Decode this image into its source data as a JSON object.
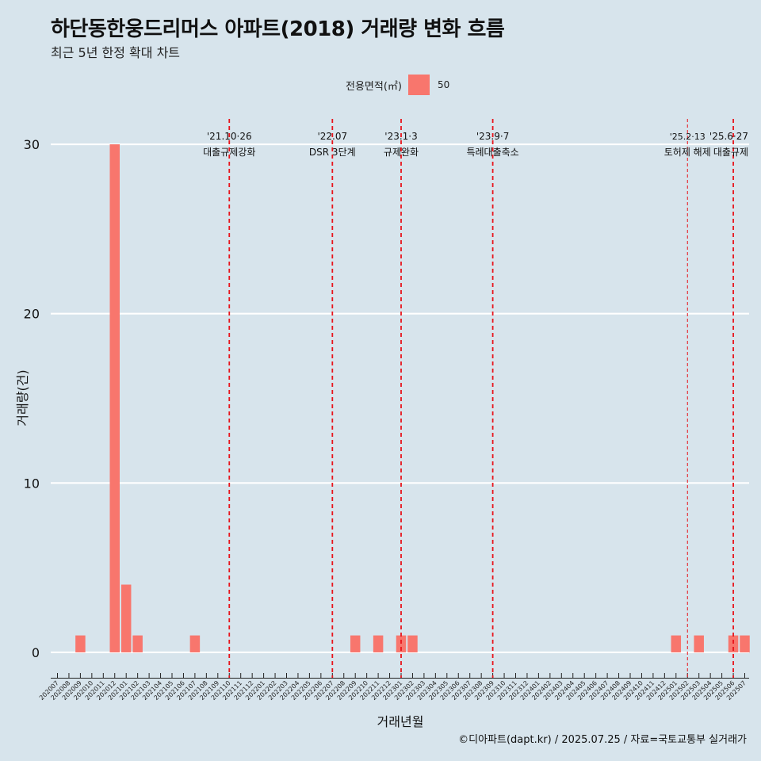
{
  "title": "하단동한웅드리머스 아파트(2018) 거래량 변화 흐름",
  "subtitle": "최근 5년 한정 확대 차트",
  "caption": "©디아파트(dapt.kr) / 2025.07.25 / 자료=국토교통부 실거래가",
  "legend": {
    "title": "전용면적(㎡)",
    "label": "50",
    "color": "#f8766d"
  },
  "chart_data": {
    "type": "bar",
    "xlabel": "거래년월",
    "ylabel": "거래량(건)",
    "ylim": [
      -1.5,
      31.5
    ],
    "yticks": [
      0,
      10,
      20,
      30
    ],
    "grid": true,
    "legend_position": "top",
    "bar_color": "#f8766d",
    "categories": [
      "202007",
      "202008",
      "202009",
      "202010",
      "202011",
      "202012",
      "202101",
      "202102",
      "202103",
      "202104",
      "202105",
      "202106",
      "202107",
      "202108",
      "202109",
      "202110",
      "202111",
      "202112",
      "202201",
      "202202",
      "202203",
      "202204",
      "202205",
      "202206",
      "202207",
      "202208",
      "202209",
      "202210",
      "202211",
      "202212",
      "202301",
      "202302",
      "202303",
      "202304",
      "202305",
      "202306",
      "202307",
      "202308",
      "202309",
      "202310",
      "202311",
      "202312",
      "202401",
      "202402",
      "202403",
      "202404",
      "202405",
      "202406",
      "202407",
      "202408",
      "202409",
      "202410",
      "202411",
      "202412",
      "202501",
      "202502",
      "202503",
      "202504",
      "202505",
      "202506",
      "202507"
    ],
    "series": [
      {
        "values": [
          0,
          0,
          1,
          0,
          0,
          30,
          4,
          1,
          0,
          0,
          0,
          0,
          1,
          0,
          0,
          0,
          0,
          0,
          0,
          0,
          0,
          0,
          0,
          0,
          0,
          0,
          1,
          0,
          1,
          0,
          1,
          1,
          0,
          0,
          0,
          0,
          0,
          0,
          0,
          0,
          0,
          0,
          0,
          0,
          0,
          0,
          0,
          0,
          0,
          0,
          0,
          0,
          0,
          0,
          1,
          0,
          1,
          0,
          0,
          1,
          1
        ]
      }
    ],
    "events": [
      {
        "category": "202110",
        "date": "'21.10·26",
        "label": "대출규제강화",
        "style": "dashed"
      },
      {
        "category": "202207",
        "date": "'22.07",
        "label": "DSR 3단계",
        "style": "dashed"
      },
      {
        "category": "202301",
        "date": "'23.1·3",
        "label": "규제완화",
        "style": "dashed"
      },
      {
        "category": "202309",
        "date": "'23.9·7",
        "label": "특례대출축소",
        "style": "dashed"
      },
      {
        "category": "202502",
        "date": "'25.2·13",
        "label": "토허제 해제",
        "style": "thin"
      },
      {
        "category": "202506",
        "date": "'25.6·27",
        "label": "대출규제",
        "style": "dashed"
      }
    ]
  }
}
